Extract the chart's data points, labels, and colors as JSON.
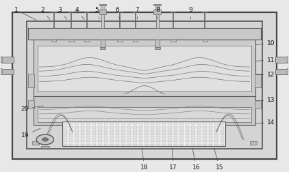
{
  "bg_color": "#e8e8e8",
  "line_color": "#666666",
  "label_color": "#111111",
  "figsize": [
    4.22,
    2.52
  ],
  "dpi": 100,
  "pins": {
    "positions": [
      0.175,
      0.235,
      0.295,
      0.345,
      0.415,
      0.475,
      0.545,
      0.6,
      0.72
    ],
    "is_large": [
      false,
      false,
      false,
      true,
      false,
      false,
      true,
      false,
      false
    ],
    "labels": [
      "2",
      "3",
      "4",
      "5",
      "6",
      "7",
      "8",
      "9",
      "1"
    ]
  },
  "label_positions": {
    "1": [
      0.055,
      0.945,
      0.13,
      0.88
    ],
    "2": [
      0.145,
      0.945,
      0.175,
      0.88
    ],
    "3": [
      0.205,
      0.945,
      0.235,
      0.88
    ],
    "4": [
      0.265,
      0.945,
      0.295,
      0.88
    ],
    "5": [
      0.335,
      0.945,
      0.345,
      0.88
    ],
    "6": [
      0.405,
      0.945,
      0.415,
      0.88
    ],
    "7": [
      0.475,
      0.945,
      0.475,
      0.88
    ],
    "8": [
      0.545,
      0.945,
      0.545,
      0.88
    ],
    "9": [
      0.66,
      0.945,
      0.66,
      0.88
    ],
    "10": [
      0.94,
      0.75,
      0.88,
      0.74
    ],
    "11": [
      0.94,
      0.65,
      0.88,
      0.645
    ],
    "12": [
      0.94,
      0.565,
      0.88,
      0.565
    ],
    "13": [
      0.94,
      0.415,
      0.88,
      0.41
    ],
    "14": [
      0.94,
      0.285,
      0.88,
      0.28
    ],
    "15": [
      0.76,
      0.02,
      0.74,
      0.145
    ],
    "16": [
      0.68,
      0.02,
      0.665,
      0.145
    ],
    "17": [
      0.6,
      0.02,
      0.595,
      0.145
    ],
    "18": [
      0.5,
      0.02,
      0.49,
      0.145
    ],
    "19": [
      0.085,
      0.21,
      0.145,
      0.255
    ],
    "20": [
      0.085,
      0.365,
      0.155,
      0.385
    ]
  }
}
